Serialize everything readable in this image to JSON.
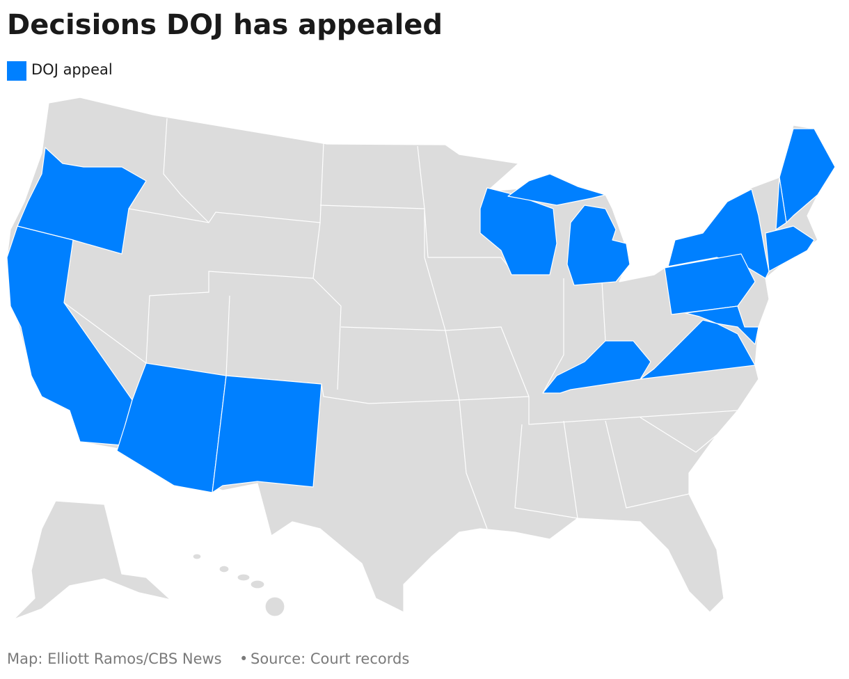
{
  "header": {
    "title": "Decisions DOJ has appealed"
  },
  "legend": {
    "label": "DOJ appeal",
    "color": "#0080ff"
  },
  "map": {
    "base_color": "#dcdcdc",
    "border_color": "#ffffff"
  },
  "footer": {
    "credit": "Map: Elliott Ramos/CBS News",
    "separator": "•",
    "source": "Source: Court records"
  }
}
